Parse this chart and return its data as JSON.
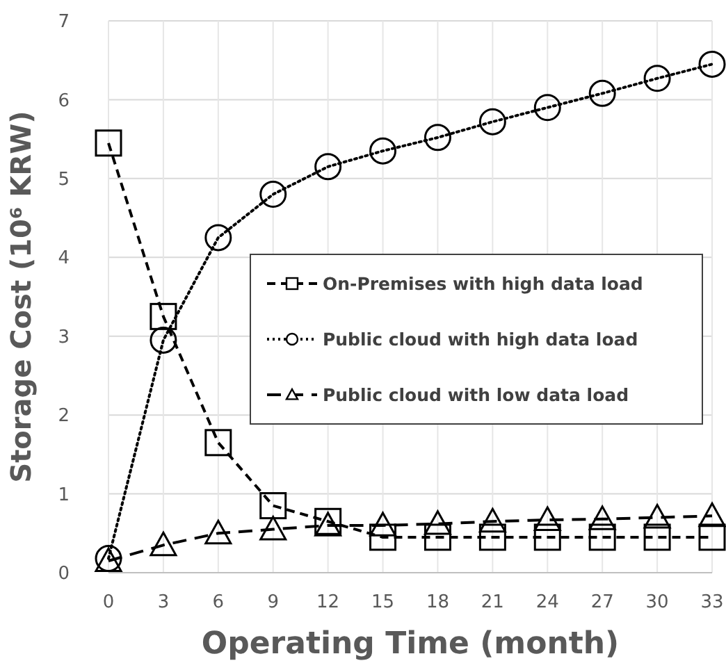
{
  "chart_data": {
    "type": "line",
    "xlabel": "Operating Time (month)",
    "ylabel": "Storage Cost (10⁶ KRW)",
    "x": [
      0,
      3,
      6,
      9,
      12,
      15,
      18,
      21,
      24,
      27,
      30,
      33
    ],
    "xlim": [
      0,
      33
    ],
    "xticks": [
      0,
      3,
      6,
      9,
      12,
      15,
      18,
      21,
      24,
      27,
      30,
      33
    ],
    "ylim": [
      0,
      7
    ],
    "yticks": [
      0,
      1,
      2,
      3,
      4,
      5,
      6,
      7
    ],
    "grid": true,
    "legend": "right",
    "series": [
      {
        "name": "On-Premises with high data load",
        "color": "#000000",
        "marker": "square",
        "line_style": "dashed",
        "values": [
          5.45,
          3.25,
          1.65,
          0.85,
          0.65,
          0.45,
          0.45,
          0.45,
          0.45,
          0.45,
          0.45,
          0.45
        ]
      },
      {
        "name": "Public cloud with high data load",
        "color": "#000000",
        "marker": "circle",
        "line_style": "dotted",
        "values": [
          0.18,
          2.95,
          4.25,
          4.8,
          5.15,
          5.35,
          5.52,
          5.72,
          5.9,
          6.08,
          6.27,
          6.45
        ]
      },
      {
        "name": "Public cloud with low data load",
        "color": "#000000",
        "marker": "triangle",
        "line_style": "longdash",
        "values": [
          0.15,
          0.35,
          0.5,
          0.55,
          0.6,
          0.6,
          0.62,
          0.65,
          0.67,
          0.68,
          0.7,
          0.72
        ]
      }
    ]
  }
}
